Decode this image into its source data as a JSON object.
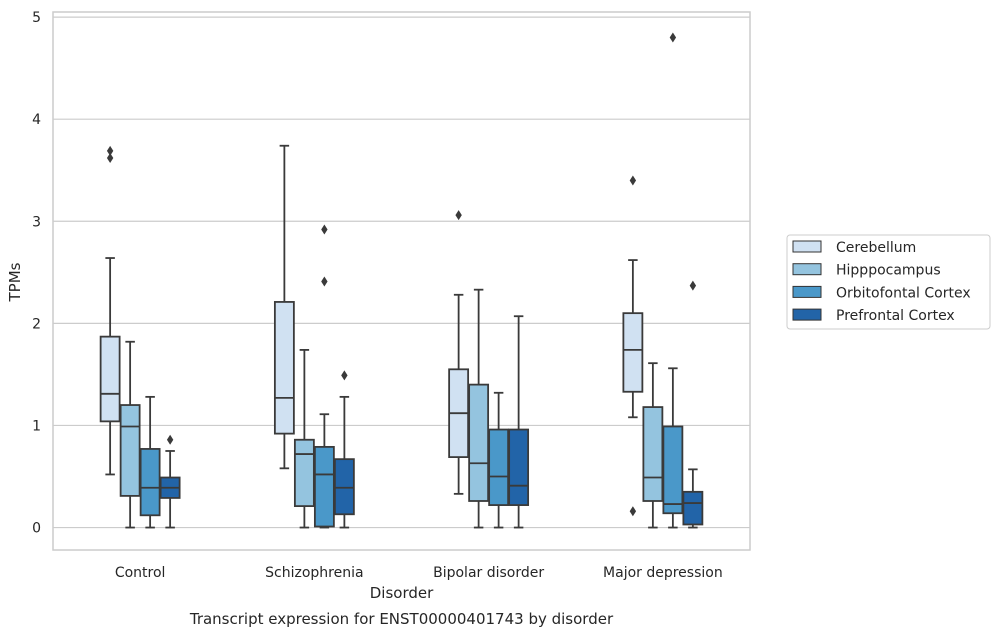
{
  "chart_data": {
    "type": "box",
    "title": "",
    "caption": "Transcript expression for ENST00000401743 by disorder",
    "xlabel": "Disorder",
    "ylabel": "TPMs",
    "ylim": [
      -0.22,
      5.05
    ],
    "yticks": [
      0,
      1,
      2,
      3,
      4,
      5
    ],
    "grid": "horizontal",
    "legend_position": "right",
    "categories": [
      "Control",
      "Schizophrenia",
      "Bipolar disorder",
      "Major depression"
    ],
    "series": [
      {
        "name": "Cerebellum",
        "color": "#d0e1f2",
        "boxes": [
          {
            "whislo": 0.52,
            "q1": 1.04,
            "med": 1.31,
            "q3": 1.87,
            "whishi": 2.64,
            "fliers": [
              3.62,
              3.69
            ]
          },
          {
            "whislo": 0.58,
            "q1": 0.92,
            "med": 1.27,
            "q3": 2.21,
            "whishi": 3.74,
            "fliers": []
          },
          {
            "whislo": 0.33,
            "q1": 0.69,
            "med": 1.12,
            "q3": 1.55,
            "whishi": 2.28,
            "fliers": [
              3.06
            ]
          },
          {
            "whislo": 1.08,
            "q1": 1.33,
            "med": 1.74,
            "q3": 2.1,
            "whishi": 2.62,
            "fliers": [
              0.16,
              3.4
            ]
          }
        ]
      },
      {
        "name": "Hipppocampus",
        "color": "#94c4df",
        "boxes": [
          {
            "whislo": 0.0,
            "q1": 0.31,
            "med": 0.99,
            "q3": 1.2,
            "whishi": 1.82,
            "fliers": []
          },
          {
            "whislo": 0.0,
            "q1": 0.21,
            "med": 0.72,
            "q3": 0.86,
            "whishi": 1.74,
            "fliers": []
          },
          {
            "whislo": 0.0,
            "q1": 0.26,
            "med": 0.63,
            "q3": 1.4,
            "whishi": 2.33,
            "fliers": []
          },
          {
            "whislo": 0.0,
            "q1": 0.26,
            "med": 0.49,
            "q3": 1.18,
            "whishi": 1.61,
            "fliers": []
          }
        ]
      },
      {
        "name": "Orbitofontal Cortex",
        "color": "#4a98c9",
        "boxes": [
          {
            "whislo": 0.0,
            "q1": 0.12,
            "med": 0.39,
            "q3": 0.77,
            "whishi": 1.28,
            "fliers": []
          },
          {
            "whislo": 0.0,
            "q1": 0.01,
            "med": 0.52,
            "q3": 0.79,
            "whishi": 1.11,
            "fliers": [
              2.41,
              2.92
            ]
          },
          {
            "whislo": 0.0,
            "q1": 0.22,
            "med": 0.5,
            "q3": 0.96,
            "whishi": 1.32,
            "fliers": []
          },
          {
            "whislo": 0.0,
            "q1": 0.14,
            "med": 0.23,
            "q3": 0.99,
            "whishi": 1.56,
            "fliers": [
              4.8
            ]
          }
        ]
      },
      {
        "name": "Prefrontal Cortex",
        "color": "#2264a8",
        "boxes": [
          {
            "whislo": 0.0,
            "q1": 0.29,
            "med": 0.39,
            "q3": 0.49,
            "whishi": 0.75,
            "fliers": [
              0.86
            ]
          },
          {
            "whislo": 0.0,
            "q1": 0.13,
            "med": 0.39,
            "q3": 0.67,
            "whishi": 1.28,
            "fliers": [
              1.49
            ]
          },
          {
            "whislo": 0.0,
            "q1": 0.22,
            "med": 0.41,
            "q3": 0.96,
            "whishi": 2.07,
            "fliers": []
          },
          {
            "whislo": 0.0,
            "q1": 0.03,
            "med": 0.24,
            "q3": 0.35,
            "whishi": 0.57,
            "fliers": [
              2.37
            ]
          }
        ]
      }
    ]
  }
}
